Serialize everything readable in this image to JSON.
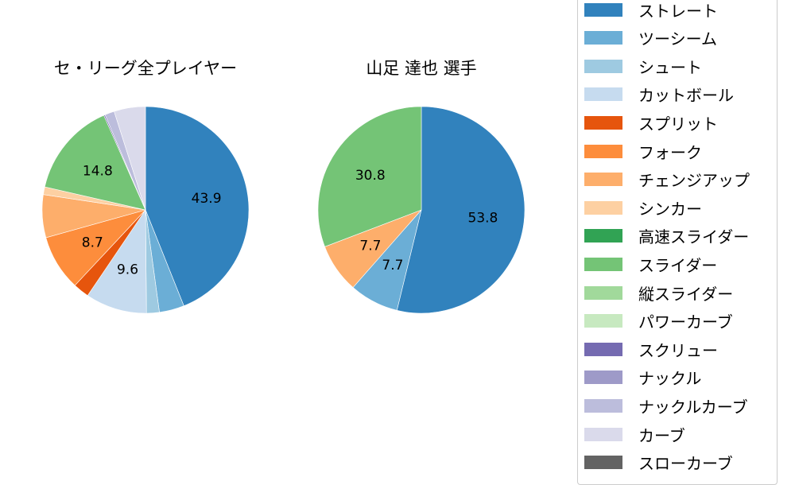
{
  "chart_data": [
    {
      "type": "pie",
      "title": "セ・リーグ全プレイヤー",
      "start_angle": 90,
      "direction": "clockwise",
      "slices": [
        {
          "label": "ストレート",
          "value": 43.9,
          "color": "#3182bd",
          "show_label": true
        },
        {
          "label": "ツーシーム",
          "value": 3.9,
          "color": "#6baed6",
          "show_label": false
        },
        {
          "label": "シュート",
          "value": 2.0,
          "color": "#9ecae1",
          "show_label": false
        },
        {
          "label": "カットボール",
          "value": 9.6,
          "color": "#c6dbef",
          "show_label": true
        },
        {
          "label": "スプリット",
          "value": 2.5,
          "color": "#e6550d",
          "show_label": false
        },
        {
          "label": "フォーク",
          "value": 8.7,
          "color": "#fd8d3c",
          "show_label": true
        },
        {
          "label": "チェンジアップ",
          "value": 6.7,
          "color": "#fdae6b",
          "show_label": false
        },
        {
          "label": "シンカー",
          "value": 1.2,
          "color": "#fdd0a2",
          "show_label": false
        },
        {
          "label": "スライダー",
          "value": 14.8,
          "color": "#74c476",
          "show_label": true
        },
        {
          "label": "スクリュー",
          "value": 0.2,
          "color": "#756bb1",
          "show_label": false
        },
        {
          "label": "ナックルカーブ",
          "value": 1.5,
          "color": "#bcbddc",
          "show_label": false
        },
        {
          "label": "カーブ",
          "value": 4.9,
          "color": "#dadaeb",
          "show_label": false
        }
      ]
    },
    {
      "type": "pie",
      "title": "山足 達也  選手",
      "start_angle": 90,
      "direction": "clockwise",
      "slices": [
        {
          "label": "ストレート",
          "value": 53.8,
          "color": "#3182bd",
          "show_label": true
        },
        {
          "label": "ツーシーム",
          "value": 7.7,
          "color": "#6baed6",
          "show_label": true
        },
        {
          "label": "チェンジアップ",
          "value": 7.7,
          "color": "#fdae6b",
          "show_label": true
        },
        {
          "label": "スライダー",
          "value": 30.8,
          "color": "#74c476",
          "show_label": true
        }
      ]
    }
  ],
  "legend": {
    "items": [
      {
        "label": "ストレート",
        "color": "#3182bd"
      },
      {
        "label": "ツーシーム",
        "color": "#6baed6"
      },
      {
        "label": "シュート",
        "color": "#9ecae1"
      },
      {
        "label": "カットボール",
        "color": "#c6dbef"
      },
      {
        "label": "スプリット",
        "color": "#e6550d"
      },
      {
        "label": "フォーク",
        "color": "#fd8d3c"
      },
      {
        "label": "チェンジアップ",
        "color": "#fdae6b"
      },
      {
        "label": "シンカー",
        "color": "#fdd0a2"
      },
      {
        "label": "高速スライダー",
        "color": "#31a354"
      },
      {
        "label": "スライダー",
        "color": "#74c476"
      },
      {
        "label": "縦スライダー",
        "color": "#a1d99b"
      },
      {
        "label": "パワーカーブ",
        "color": "#c7e9c0"
      },
      {
        "label": "スクリュー",
        "color": "#756bb1"
      },
      {
        "label": "ナックル",
        "color": "#9e9ac8"
      },
      {
        "label": "ナックルカーブ",
        "color": "#bcbddc"
      },
      {
        "label": "カーブ",
        "color": "#dadaeb"
      },
      {
        "label": "スローカーブ",
        "color": "#636363"
      }
    ]
  }
}
